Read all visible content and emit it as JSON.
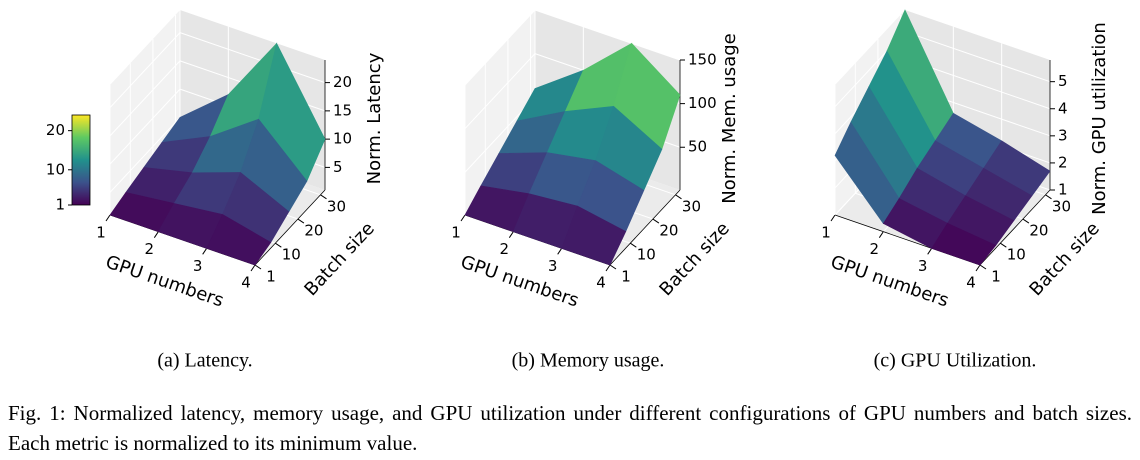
{
  "chart_data": [
    {
      "type": "surface",
      "caption": "(a) Latency.",
      "x_label": "GPU numbers",
      "y_label": "Batch size",
      "z_label": "Norm. Latency",
      "x": [
        1,
        2,
        3,
        4
      ],
      "y": [
        1,
        8,
        16,
        24,
        32
      ],
      "values": [
        [
          1,
          2,
          3,
          4,
          5
        ],
        [
          1,
          3,
          5,
          8,
          12
        ],
        [
          1,
          4,
          8,
          14,
          24
        ],
        [
          1,
          2,
          4,
          6,
          10
        ]
      ],
      "xlim": [
        1,
        4
      ],
      "ylim": [
        1,
        32
      ],
      "zlim": [
        1,
        24
      ],
      "xticks": [
        1,
        2,
        3,
        4
      ],
      "yticks": [
        1,
        10,
        20,
        30
      ],
      "zticks": [
        5,
        10,
        15,
        20
      ],
      "colormap": "viridis",
      "colorbar_ticks": [
        1,
        10,
        20
      ]
    },
    {
      "type": "surface",
      "caption": "(b) Memory usage.",
      "x_label": "GPU numbers",
      "y_label": "Batch size",
      "z_label": "Norm. Mem. usage",
      "x": [
        1,
        2,
        3,
        4
      ],
      "y": [
        1,
        8,
        16,
        24,
        32
      ],
      "values": [
        [
          1,
          15,
          30,
          45,
          60
        ],
        [
          1,
          25,
          50,
          75,
          100
        ],
        [
          1,
          30,
          60,
          100,
          150
        ],
        [
          1,
          20,
          45,
          70,
          110
        ]
      ],
      "xlim": [
        1,
        4
      ],
      "ylim": [
        1,
        32
      ],
      "zlim": [
        1,
        150
      ],
      "xticks": [
        1,
        2,
        3,
        4
      ],
      "yticks": [
        1,
        10,
        20,
        30
      ],
      "zticks": [
        50,
        100,
        150
      ],
      "colormap": "viridis"
    },
    {
      "type": "surface",
      "caption": "(c) GPU Utilization.",
      "x_label": "GPU numbers",
      "y_label": "Batch size",
      "z_label": "Norm. GPU utilization",
      "x": [
        1,
        2,
        3,
        4
      ],
      "y": [
        1,
        8,
        16,
        24,
        32
      ],
      "values": [
        [
          3.2,
          3.8,
          4.4,
          5.0,
          5.8
        ],
        [
          1.3,
          1.6,
          2.0,
          2.3,
          2.6
        ],
        [
          1.0,
          1.3,
          1.6,
          1.9,
          2.2
        ],
        [
          1.0,
          1.1,
          1.3,
          1.5,
          1.7
        ]
      ],
      "xlim": [
        1,
        4
      ],
      "ylim": [
        1,
        32
      ],
      "zlim": [
        1,
        5.8
      ],
      "xticks": [
        1,
        2,
        3,
        4
      ],
      "yticks": [
        1,
        10,
        20,
        30
      ],
      "zticks": [
        1,
        2,
        3,
        4,
        5
      ],
      "colormap": "viridis"
    }
  ],
  "figure_caption": "Fig. 1: Normalized latency, memory usage, and GPU utilization under different configurations of GPU numbers and batch sizes. Each metric is normalized to its minimum value."
}
